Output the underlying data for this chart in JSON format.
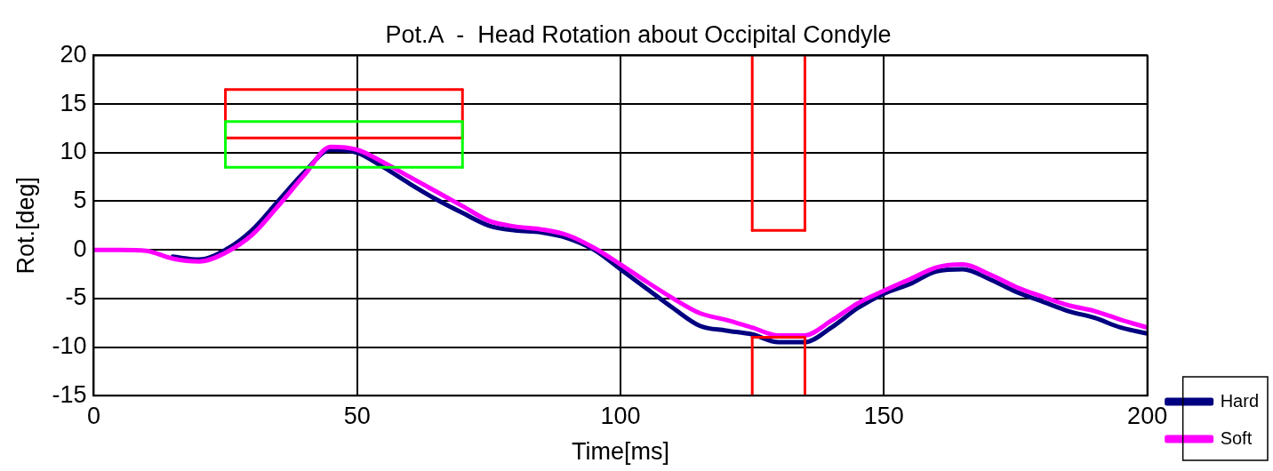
{
  "chart_data": {
    "type": "line",
    "title": "Pot.A  -  Head Rotation about Occipital Condyle",
    "xlabel": "Time[ms]",
    "ylabel": "Rot.[deg]",
    "x": [
      0,
      5,
      10,
      15,
      20,
      25,
      30,
      35,
      40,
      45,
      50,
      55,
      60,
      65,
      70,
      75,
      80,
      85,
      90,
      95,
      100,
      105,
      110,
      115,
      120,
      125,
      130,
      135,
      140,
      145,
      150,
      155,
      160,
      165,
      170,
      175,
      180,
      185,
      190,
      195,
      200
    ],
    "series": [
      {
        "name": "Hard",
        "color": "#000080",
        "values": [
          null,
          null,
          null,
          -0.7,
          -1.0,
          0,
          2,
          5,
          8,
          10.3,
          10,
          8.5,
          6.8,
          5.2,
          3.8,
          2.5,
          2,
          1.8,
          1.2,
          0,
          -2,
          -4,
          -6,
          -7.8,
          -8.3,
          -8.7,
          -9.5,
          -9.5,
          -8,
          -6,
          -4.5,
          -3.5,
          -2.2,
          -2,
          -3,
          -4.3,
          -5.3,
          -6.3,
          -7,
          -8,
          -8.6
        ]
      },
      {
        "name": "Soft",
        "color": "#ff00ff",
        "values": [
          0,
          0,
          -0.1,
          -0.9,
          -1.2,
          -0.3,
          1.5,
          4.5,
          7.7,
          10.6,
          10.3,
          9,
          7.5,
          6,
          4.5,
          3,
          2.4,
          2.1,
          1.5,
          0.2,
          -1.5,
          -3.3,
          -5,
          -6.5,
          -7.2,
          -8,
          -8.8,
          -8.8,
          -7.3,
          -5.5,
          -4.2,
          -3,
          -1.8,
          -1.5,
          -2.5,
          -3.8,
          -4.8,
          -5.7,
          -6.3,
          -7.2,
          -8.0
        ]
      },
      {
        "color": "#ff0000",
        "x": [
          25,
          70
        ],
        "values": [
          16.5,
          16.5
        ]
      },
      {
        "color": "#ff0000",
        "x": [
          25,
          70
        ],
        "values": [
          11.5,
          11.5
        ]
      },
      {
        "color": "#ff0000",
        "x": [
          25,
          25
        ],
        "values": [
          11.5,
          16.5
        ]
      },
      {
        "color": "#ff0000",
        "x": [
          70,
          70
        ],
        "values": [
          11.5,
          16.5
        ]
      },
      {
        "color": "#00ff00",
        "x": [
          25,
          70
        ],
        "values": [
          13.2,
          13.2
        ]
      },
      {
        "color": "#00ff00",
        "x": [
          25,
          70
        ],
        "values": [
          8.5,
          8.5
        ]
      },
      {
        "color": "#00ff00",
        "x": [
          25,
          25
        ],
        "values": [
          8.5,
          13.2
        ]
      },
      {
        "color": "#00ff00",
        "x": [
          70,
          70
        ],
        "values": [
          8.5,
          13.2
        ]
      },
      {
        "color": "#ff0000",
        "x": [
          125,
          135
        ],
        "values": [
          2,
          2
        ]
      },
      {
        "color": "#ff0000",
        "x": [
          125,
          125
        ],
        "values": [
          2,
          20
        ]
      },
      {
        "color": "#ff0000",
        "x": [
          135,
          135
        ],
        "values": [
          2,
          20
        ]
      },
      {
        "color": "#ff0000",
        "x": [
          125,
          135
        ],
        "values": [
          -9,
          -9
        ]
      },
      {
        "color": "#ff0000",
        "x": [
          125,
          125
        ],
        "values": [
          -15,
          -9
        ]
      },
      {
        "color": "#ff0000",
        "x": [
          135,
          135
        ],
        "values": [
          -15,
          -9
        ]
      }
    ],
    "xlim": [
      0,
      200
    ],
    "xticks": [
      0,
      50,
      100,
      150,
      200
    ],
    "ylim": [
      -15,
      20
    ],
    "yticks": [
      -15,
      -10,
      -5,
      0,
      5,
      10,
      15,
      20
    ],
    "grid": true,
    "legend": "bottom right",
    "marker": "none",
    "line_style": "solid"
  }
}
